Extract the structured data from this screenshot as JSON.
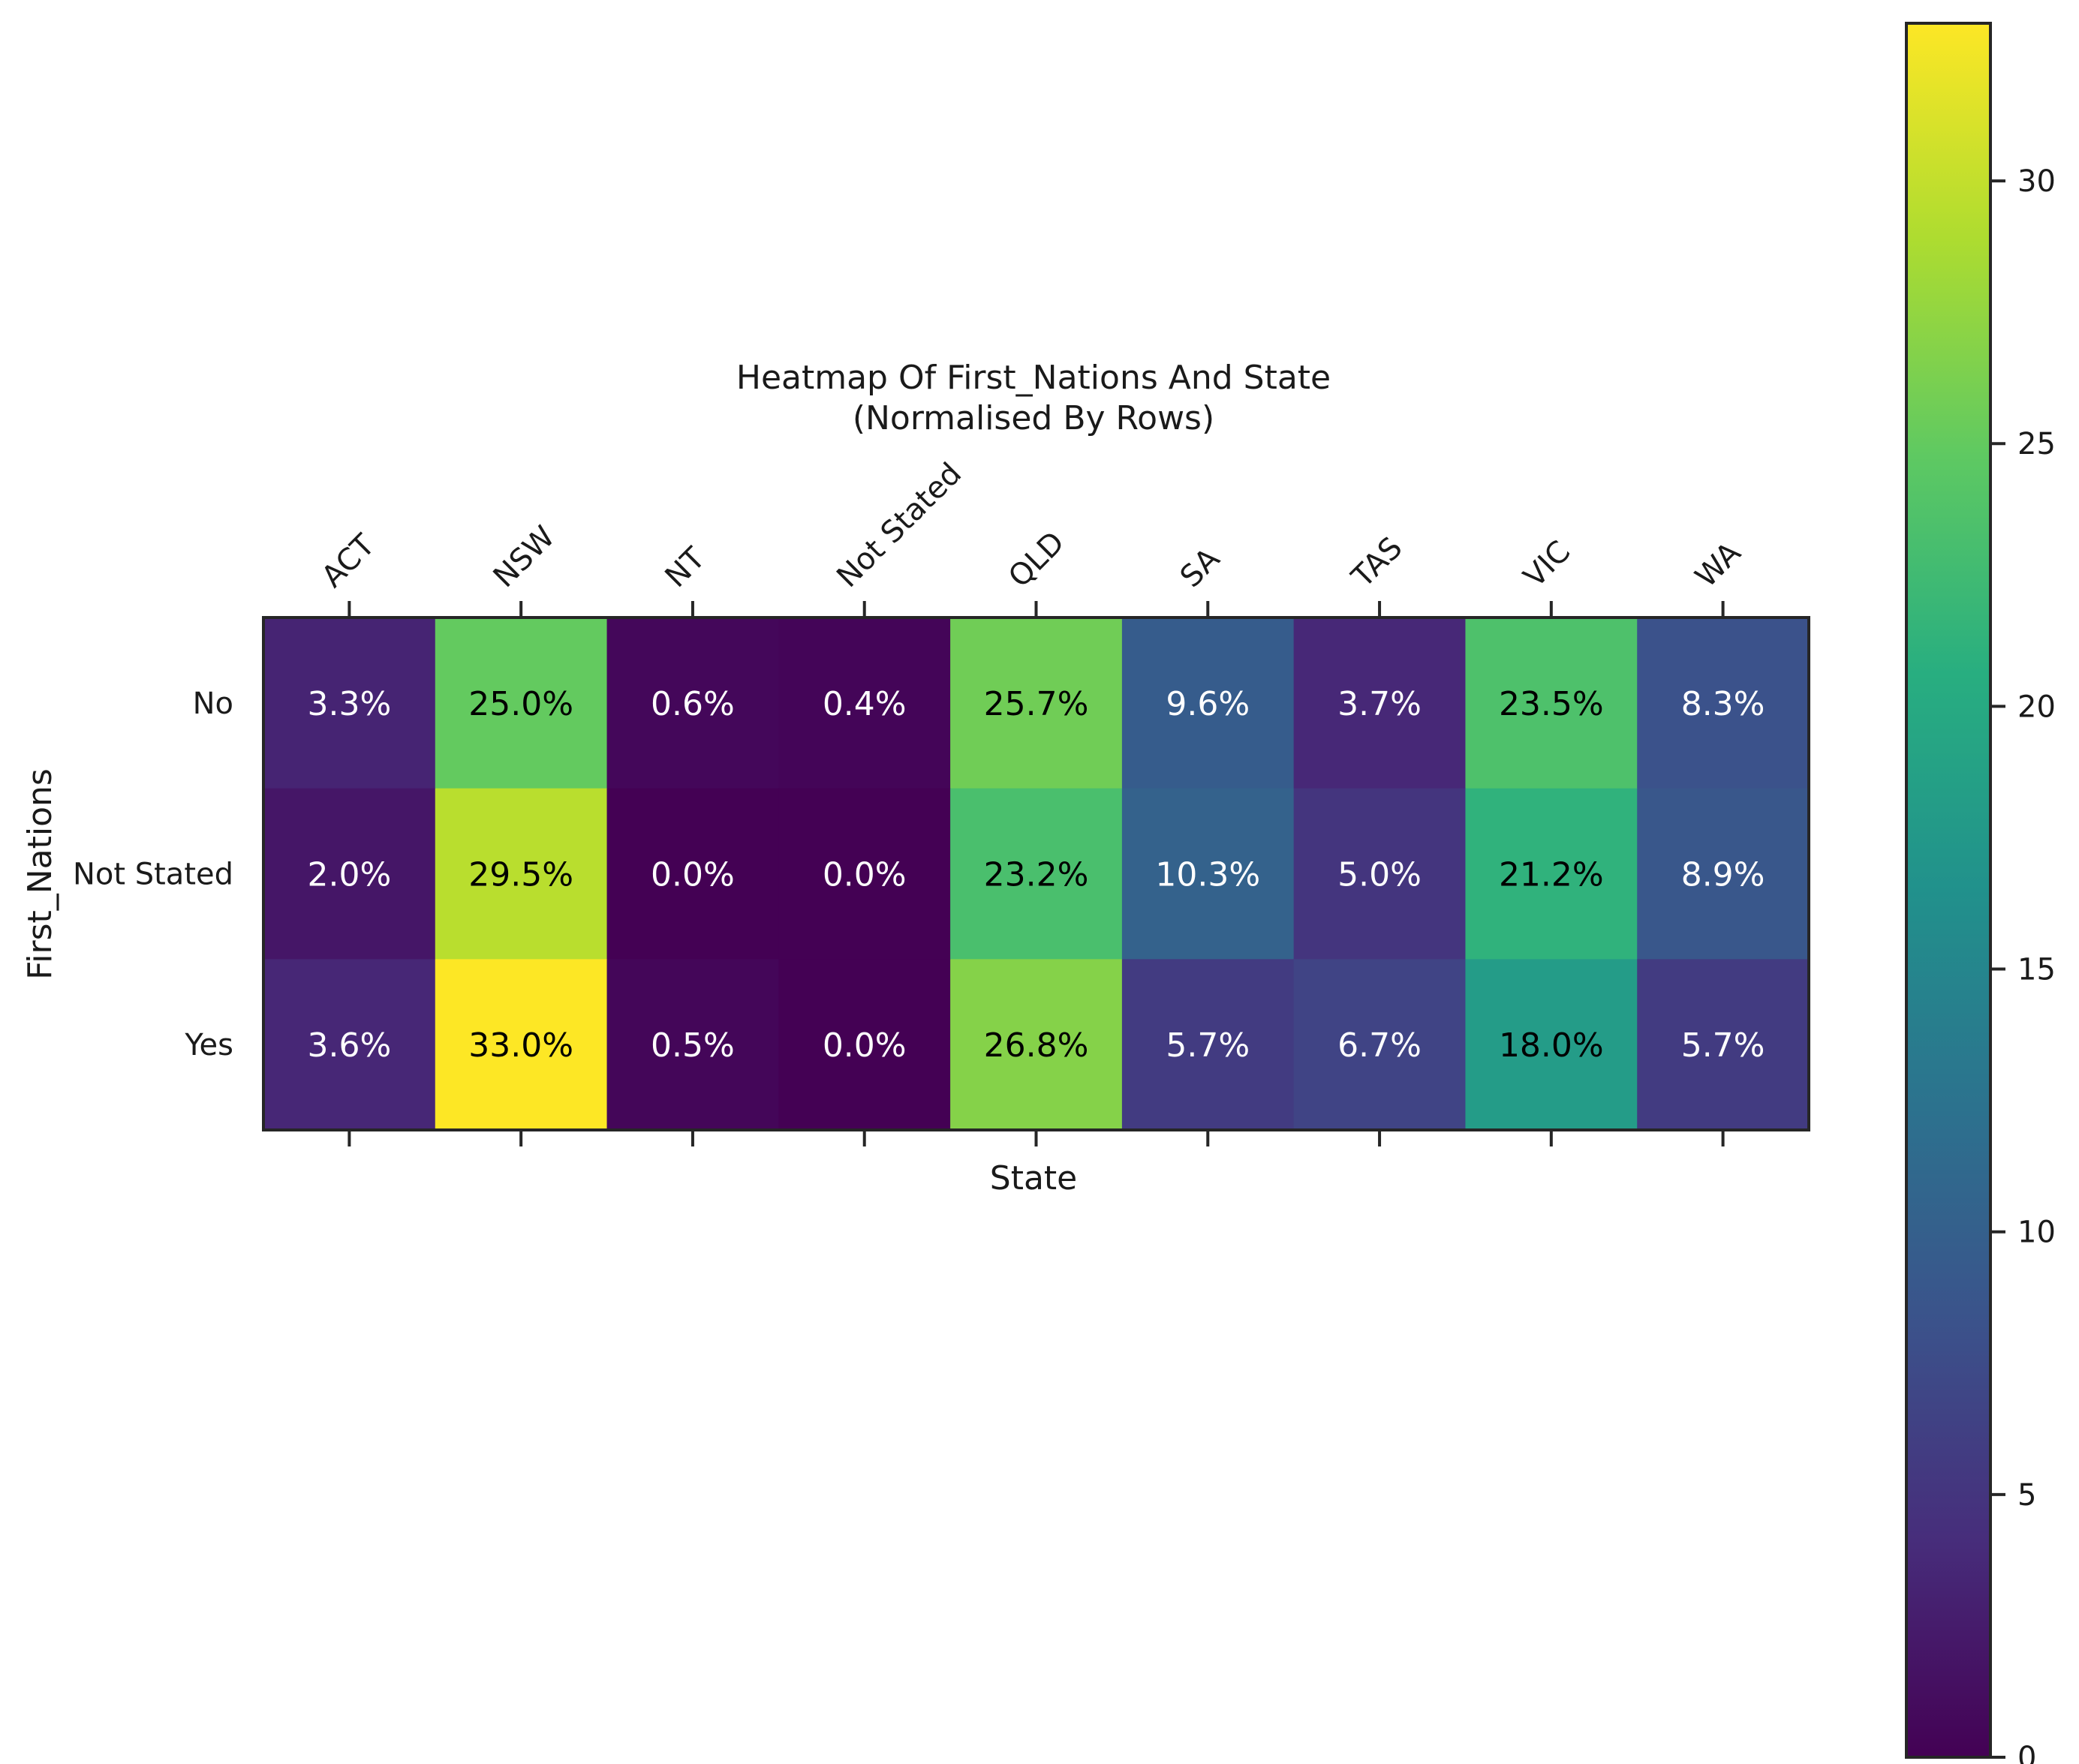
{
  "chart_data": {
    "type": "heatmap",
    "title": [
      "Heatmap Of First_Nations And State",
      "(Normalised By Rows)"
    ],
    "xlabel": "State",
    "ylabel": "First_Nations",
    "x_categories": [
      "ACT",
      "NSW",
      "NT",
      "Not Stated",
      "QLD",
      "SA",
      "TAS",
      "VIC",
      "WA"
    ],
    "y_categories": [
      "No",
      "Not Stated",
      "Yes"
    ],
    "values": [
      [
        3.3,
        25.0,
        0.6,
        0.4,
        25.7,
        9.6,
        3.7,
        23.5,
        8.3
      ],
      [
        2.0,
        29.5,
        0.0,
        0.0,
        23.2,
        10.3,
        5.0,
        21.2,
        8.9
      ],
      [
        3.6,
        33.0,
        0.5,
        0.0,
        26.8,
        5.7,
        6.7,
        18.0,
        5.7
      ]
    ],
    "value_labels": [
      [
        "3.3%",
        "25.0%",
        "0.6%",
        "0.4%",
        "25.7%",
        "9.6%",
        "3.7%",
        "23.5%",
        "8.3%"
      ],
      [
        "2.0%",
        "29.5%",
        "0.0%",
        "0.0%",
        "23.2%",
        "10.3%",
        "5.0%",
        "21.2%",
        "8.9%"
      ],
      [
        "3.6%",
        "33.0%",
        "0.5%",
        "0.0%",
        "26.8%",
        "5.7%",
        "6.7%",
        "18.0%",
        "5.7%"
      ]
    ],
    "colormap": "viridis",
    "colorbar": {
      "range": [
        0,
        33.0
      ],
      "ticks": [
        0,
        5,
        10,
        15,
        20,
        25,
        30
      ],
      "tick_labels": [
        "0",
        "5",
        "10",
        "15",
        "20",
        "25",
        "30"
      ]
    },
    "colors": {
      "text_dark": "#000000",
      "text_light": "#ffffff",
      "frame": "#262626"
    }
  }
}
